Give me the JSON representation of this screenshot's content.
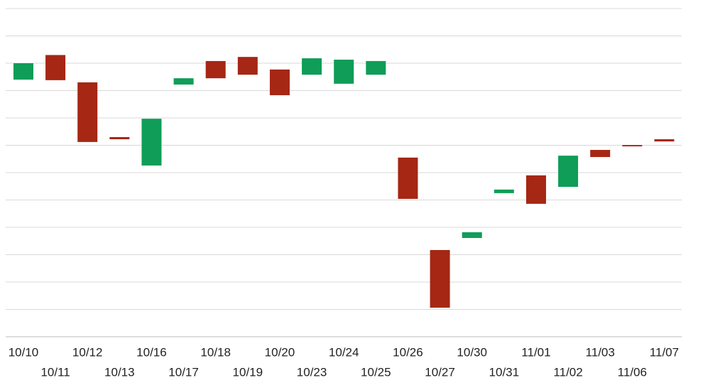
{
  "chart_data": {
    "type": "candlestick",
    "categories": [
      "10/10",
      "10/11",
      "10/12",
      "10/13",
      "10/16",
      "10/17",
      "10/18",
      "10/19",
      "10/20",
      "10/23",
      "10/24",
      "10/25",
      "10/26",
      "10/27",
      "10/30",
      "10/31",
      "11/01",
      "11/02",
      "11/03",
      "11/06",
      "11/07"
    ],
    "open": [
      9.4,
      10.3,
      9.3,
      7.3,
      6.26,
      9.22,
      10.08,
      10.23,
      9.77,
      9.58,
      9.25,
      9.58,
      6.55,
      3.17,
      3.61,
      5.25,
      5.9,
      5.48,
      6.83,
      7.01,
      7.22
    ],
    "close": [
      10.0,
      9.38,
      7.12,
      7.22,
      7.97,
      9.45,
      9.45,
      9.58,
      8.83,
      10.18,
      10.13,
      10.08,
      5.04,
      1.06,
      3.82,
      5.38,
      4.86,
      6.62,
      6.57,
      6.96,
      7.14
    ],
    "up_color": "#0f9d58",
    "down_color": "#a52714",
    "ylim": [
      0,
      12
    ],
    "yticks": [
      0,
      1,
      2,
      3,
      4,
      5,
      6,
      7,
      8,
      9,
      10,
      11,
      12
    ],
    "show_ytick_labels": false,
    "grid": true
  }
}
